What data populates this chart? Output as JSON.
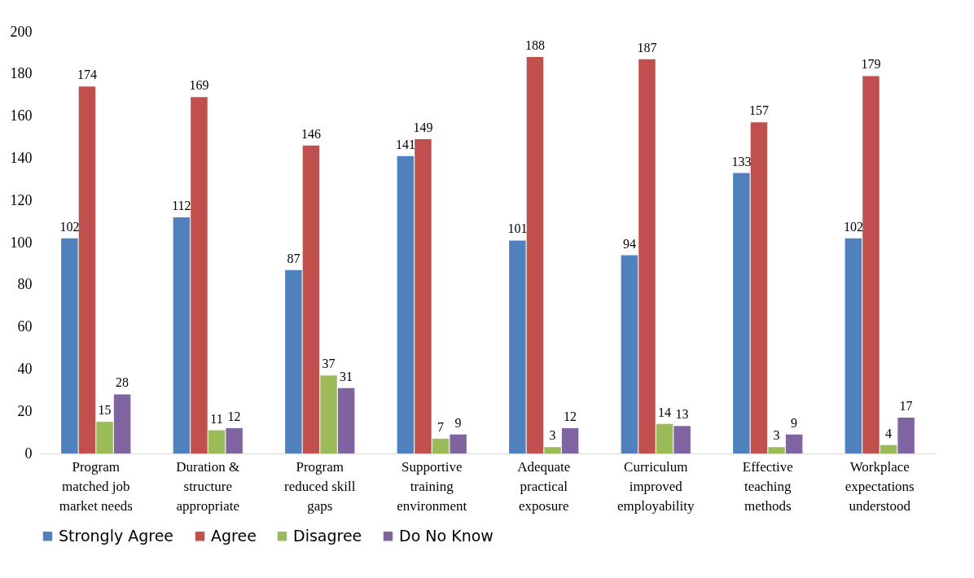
{
  "chart_data": {
    "type": "bar",
    "categories": [
      "Program matched job market needs",
      "Duration & structure appropriate",
      "Program reduced skill gaps",
      "Supportive training environment",
      "Adequate practical exposure",
      "Curriculum improved employability",
      "Effective teaching methods",
      "Workplace expectations understood"
    ],
    "series": [
      {
        "name": "Strongly Agree",
        "color": "#4f81bd",
        "values": [
          102,
          112,
          87,
          141,
          101,
          94,
          133,
          102
        ]
      },
      {
        "name": "Agree",
        "color": "#c0504d",
        "values": [
          174,
          169,
          146,
          149,
          188,
          187,
          157,
          179
        ]
      },
      {
        "name": "Disagree",
        "color": "#9bbb59",
        "values": [
          15,
          11,
          37,
          7,
          3,
          14,
          3,
          4
        ]
      },
      {
        "name": "Do No Know",
        "color": "#8064a2",
        "values": [
          28,
          12,
          31,
          9,
          12,
          13,
          9,
          17
        ]
      }
    ],
    "ylim": [
      0,
      200
    ],
    "yticks": [
      0,
      20,
      40,
      60,
      80,
      100,
      120,
      140,
      160,
      180,
      200
    ],
    "data_labels": true,
    "legend": "bottom"
  }
}
